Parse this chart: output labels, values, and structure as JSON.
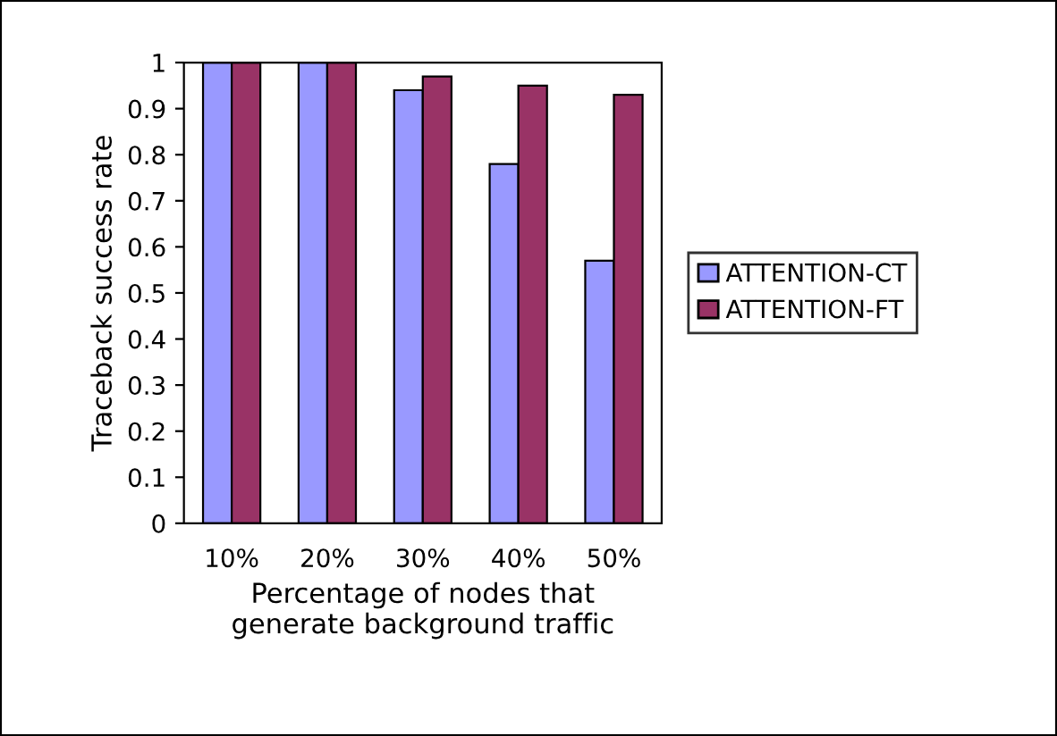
{
  "chart_data": {
    "type": "bar",
    "categories": [
      "10%",
      "20%",
      "30%",
      "40%",
      "50%"
    ],
    "xlabel": "Percentage of nodes that\ngenerate background traffic",
    "ylabel": "Traceback success rate",
    "series": [
      {
        "name": "ATTENTION-CT",
        "color": "#9999ff",
        "values": [
          1,
          1,
          0.94,
          0.78,
          0.57
        ]
      },
      {
        "name": "ATTENTION-FT",
        "color": "#993366",
        "values": [
          1,
          1,
          0.97,
          0.95,
          0.93
        ]
      }
    ],
    "ylim": [
      0,
      1
    ],
    "yticks": [
      0,
      0.1,
      0.2,
      0.3,
      0.4,
      0.5,
      0.6,
      0.7,
      0.8,
      0.9,
      1
    ],
    "grid": false,
    "legend": "right"
  }
}
